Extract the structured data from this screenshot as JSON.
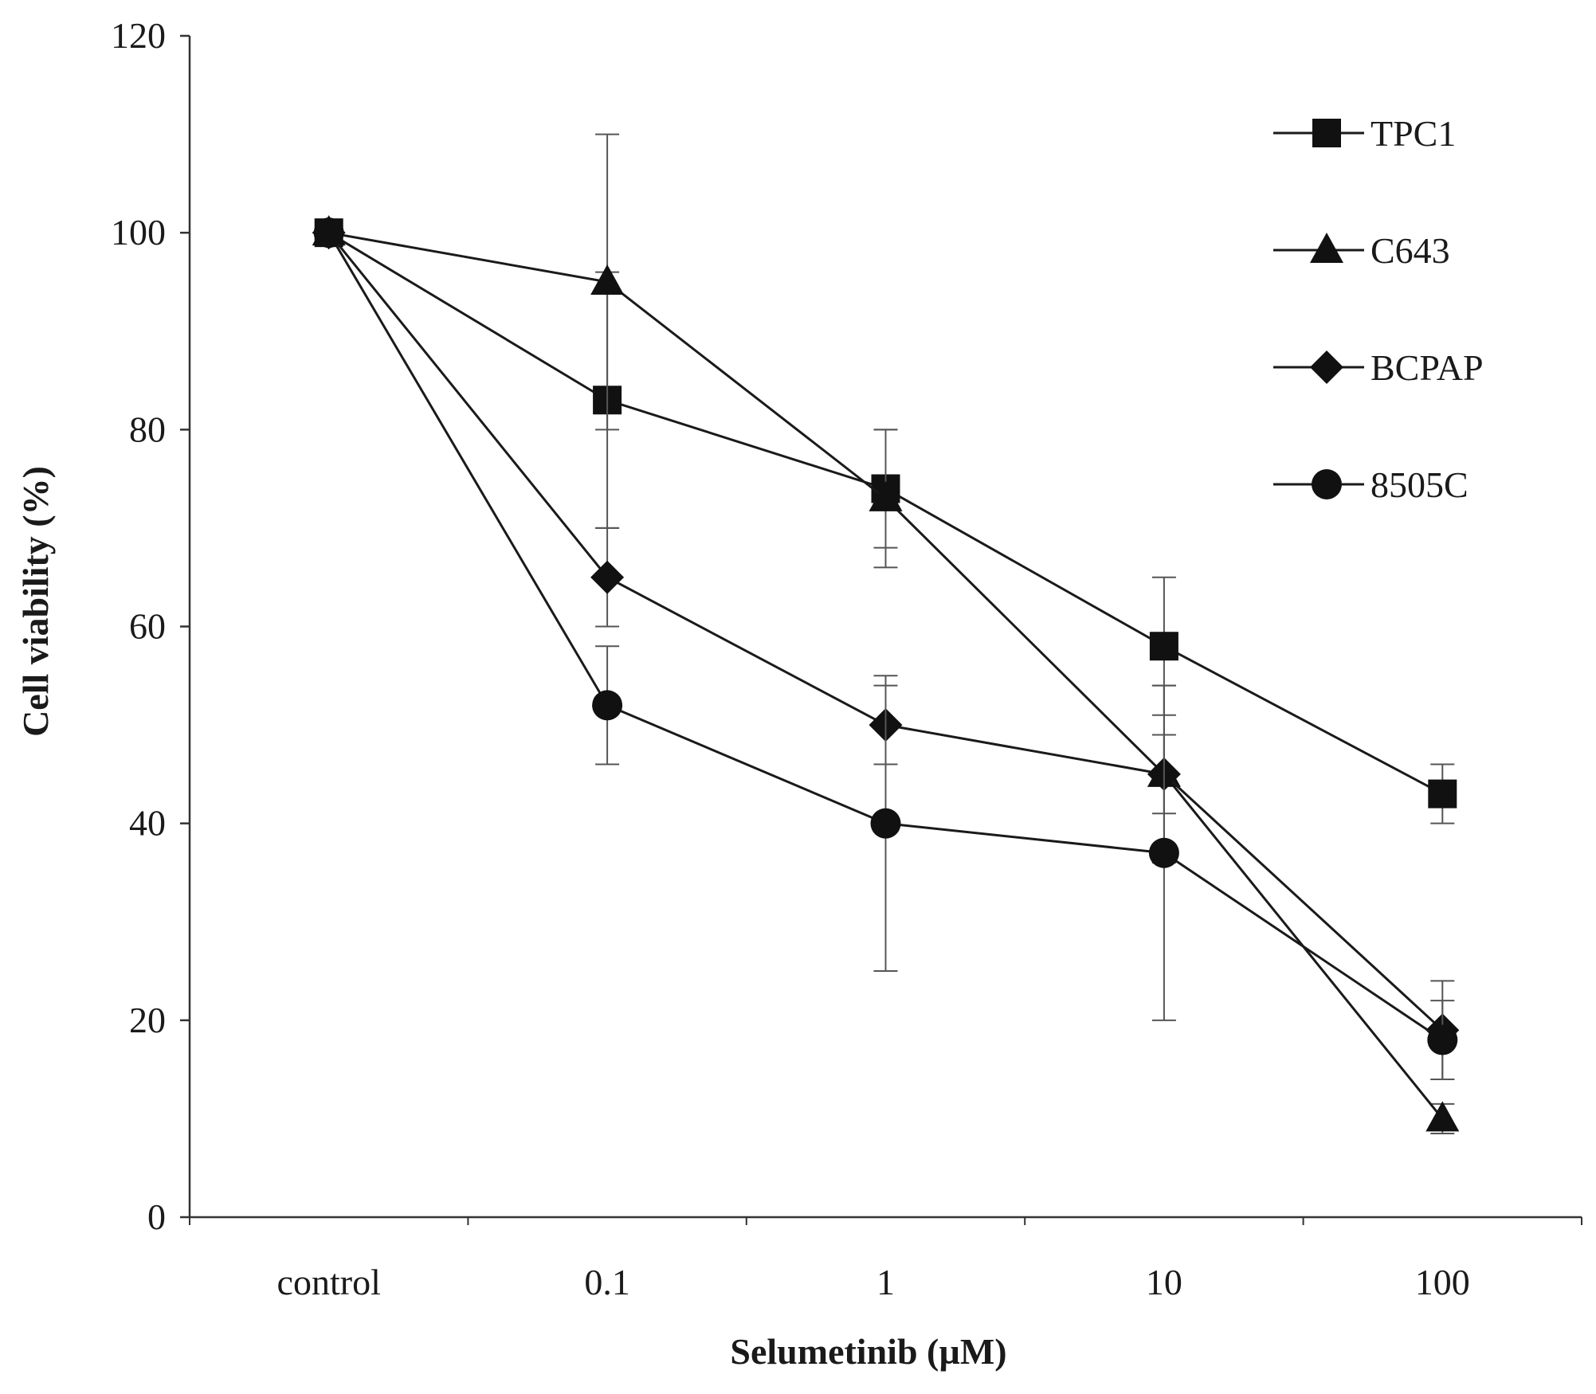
{
  "chart_data": {
    "type": "line",
    "xlabel": "Selumetinib (µM)",
    "ylabel": "Cell viability (%)",
    "categories": [
      "control",
      "0.1",
      "1",
      "10",
      "100"
    ],
    "ylim": [
      0,
      120
    ],
    "yticks": [
      "0",
      "20",
      "40",
      "60",
      "80",
      "100",
      "120"
    ],
    "grid": false,
    "legend_position": "top-right",
    "series": [
      {
        "name": "TPC1",
        "marker": "square",
        "values": [
          100,
          83,
          74,
          58,
          43
        ],
        "errors": [
          0.5,
          13,
          6,
          7,
          3
        ]
      },
      {
        "name": "C643",
        "marker": "triangle",
        "values": [
          100,
          95,
          73,
          45,
          10
        ],
        "errors": [
          0.5,
          15,
          7,
          9,
          1.5
        ]
      },
      {
        "name": "BCPAP",
        "marker": "diamond",
        "values": [
          100,
          65,
          50,
          45,
          19
        ],
        "errors": [
          0.5,
          5,
          4,
          4,
          5
        ]
      },
      {
        "name": "8505C",
        "marker": "circle",
        "values": [
          100,
          52,
          40,
          37,
          18
        ],
        "errors": [
          0.5,
          6,
          15,
          17,
          4
        ]
      }
    ],
    "colors": {
      "line": "#1a1a1a",
      "marker": "#111111",
      "error_bar": "#555555"
    }
  }
}
